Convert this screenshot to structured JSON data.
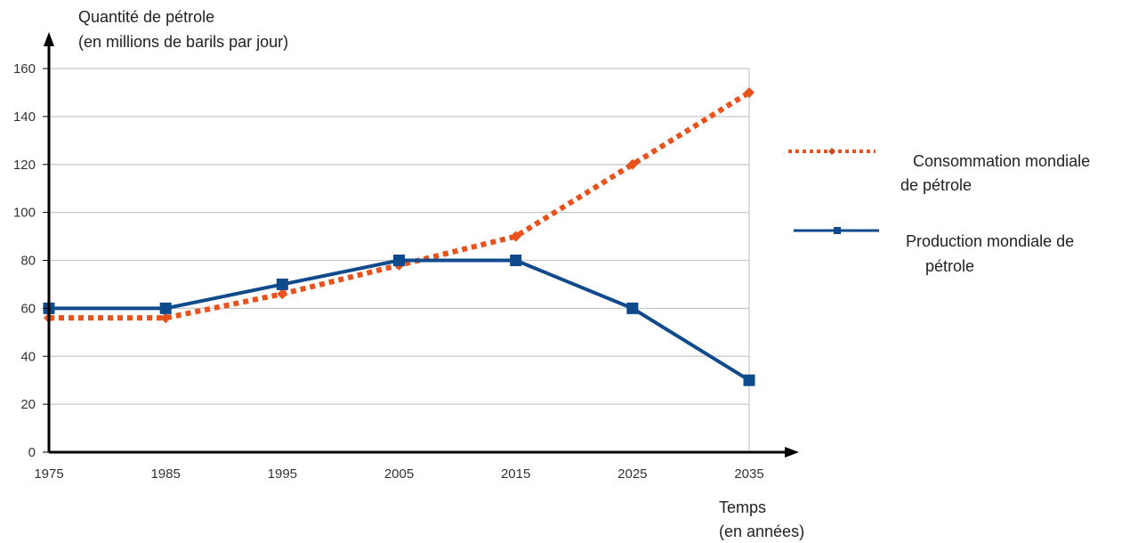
{
  "chart_data": {
    "type": "line",
    "title": "",
    "ylabel_line1": "Quantité de pétrole",
    "ylabel_line2": "(en millions de barils par jour)",
    "xlabel_line1": "Temps",
    "xlabel_line2": "(en années)",
    "x": [
      1975,
      1985,
      1995,
      2005,
      2015,
      2025,
      2035
    ],
    "x_ticks": [
      "1975",
      "1985",
      "1995",
      "2005",
      "2015",
      "2025",
      "2035"
    ],
    "xlim": [
      1975,
      2035
    ],
    "ylim": [
      0,
      160
    ],
    "y_ticks": [
      "0",
      "20",
      "40",
      "60",
      "80",
      "100",
      "120",
      "140",
      "160"
    ],
    "grid": "horizontal",
    "legend_position": "right",
    "series": [
      {
        "name_line1": "Consommation mondiale",
        "name_line2": "de pétrole",
        "values": [
          56,
          56,
          66,
          78,
          90,
          120,
          150
        ],
        "color": "#e8521c",
        "style": "dotted",
        "marker": "diamond"
      },
      {
        "name_line1": "Production mondiale de",
        "name_line2": "pétrole",
        "values": [
          60,
          60,
          70,
          80,
          80,
          60,
          30
        ],
        "color": "#0e4a8c",
        "style": "solid",
        "marker": "square"
      }
    ]
  }
}
